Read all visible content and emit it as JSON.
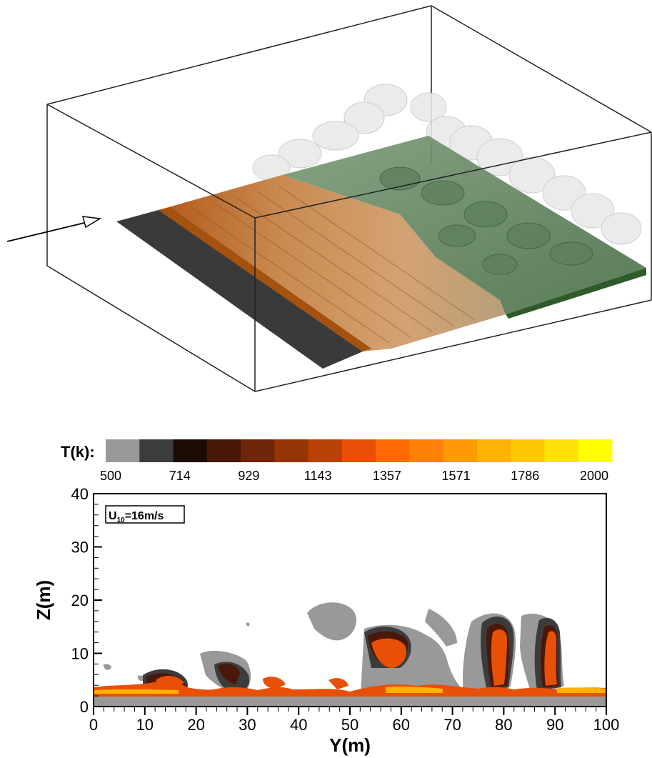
{
  "colorbar": {
    "label": "T(k):",
    "ticks": [
      "500",
      "714",
      "929",
      "1143",
      "1357",
      "1571",
      "1786",
      "2000"
    ],
    "colors": [
      "#999999",
      "#3c3c3c",
      "#1c0a05",
      "#4a1808",
      "#6e2508",
      "#953405",
      "#b84205",
      "#e85008",
      "#ff6a06",
      "#ff8008",
      "#ff9a06",
      "#ffb105",
      "#ffc806",
      "#ffe108",
      "#ffff00"
    ]
  },
  "chart_data": [
    {
      "type": "isosurface-3d",
      "description_elements": [
        "grey fuel strip",
        "burning orange/yellow fire front",
        "green unburnt vegetation",
        "white plume isosurfaces",
        "wind direction arrow"
      ]
    },
    {
      "type": "contour",
      "xlabel": "Y(m)",
      "ylabel": "Z(m)",
      "xlim": [
        0,
        100
      ],
      "ylim": [
        0,
        40
      ],
      "xticks": [
        0,
        10,
        20,
        30,
        40,
        50,
        60,
        70,
        80,
        90,
        100
      ],
      "yticks": [
        0,
        10,
        20,
        30,
        40
      ],
      "annotation": {
        "base": "U",
        "sub": "10",
        "rest": "=16m/s"
      },
      "contour_levels": [
        500,
        714,
        929,
        1143,
        1357,
        1571,
        1786,
        2000
      ]
    }
  ]
}
